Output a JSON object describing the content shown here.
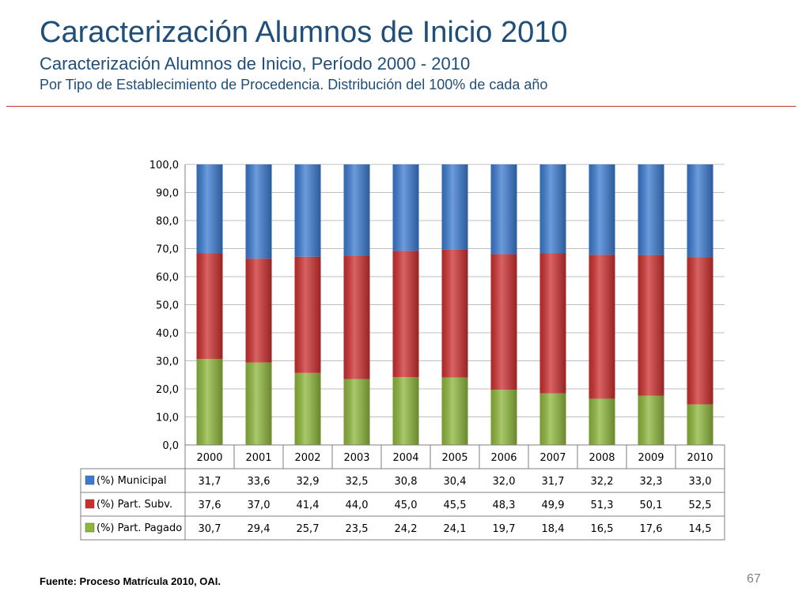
{
  "slide": {
    "title": "Caracterización Alumnos de Inicio 2010",
    "subtitle": "Caracterización Alumnos de Inicio, Período 2000 - 2010",
    "subsubtitle": "Por Tipo de Establecimiento de Procedencia. Distribución del 100% de cada año",
    "source": "Fuente: Proceso Matrícula 2010, OAI.",
    "page_number": "67",
    "title_color": "#1F4E79",
    "rule_color": "#C0392B"
  },
  "chart_data": {
    "type": "bar",
    "stacked": true,
    "categories": [
      "2000",
      "2001",
      "2002",
      "2003",
      "2004",
      "2005",
      "2006",
      "2007",
      "2008",
      "2009",
      "2010"
    ],
    "series": [
      {
        "name": "(%) Municipal",
        "color": "#3A7AD0",
        "values": [
          31.7,
          33.6,
          32.9,
          32.5,
          30.8,
          30.4,
          32.0,
          31.7,
          32.2,
          32.3,
          33.0
        ],
        "labels": [
          "31,7",
          "33,6",
          "32,9",
          "32,5",
          "30,8",
          "30,4",
          "32,0",
          "31,7",
          "32,2",
          "32,3",
          "33,0"
        ]
      },
      {
        "name": "(%) Part. Subv.",
        "color": "#CC2E2E",
        "values": [
          37.6,
          37.0,
          41.4,
          44.0,
          45.0,
          45.5,
          48.3,
          49.9,
          51.3,
          50.1,
          52.5
        ],
        "labels": [
          "37,6",
          "37,0",
          "41,4",
          "44,0",
          "45,0",
          "45,5",
          "48,3",
          "49,9",
          "51,3",
          "50,1",
          "52,5"
        ]
      },
      {
        "name": "(%) Part. Pagado",
        "color": "#8DB63A",
        "values": [
          30.7,
          29.4,
          25.7,
          23.5,
          24.2,
          24.1,
          19.7,
          18.4,
          16.5,
          17.6,
          14.5
        ],
        "labels": [
          "30,7",
          "29,4",
          "25,7",
          "23,5",
          "24,2",
          "24,1",
          "19,7",
          "18,4",
          "16,5",
          "17,6",
          "14,5"
        ]
      }
    ],
    "ylim": [
      0,
      100
    ],
    "yticks": [
      "0,0",
      "10,0",
      "20,0",
      "30,0",
      "40,0",
      "50,0",
      "60,0",
      "70,0",
      "80,0",
      "90,0",
      "100,0"
    ],
    "grid": true,
    "data_table": true
  }
}
